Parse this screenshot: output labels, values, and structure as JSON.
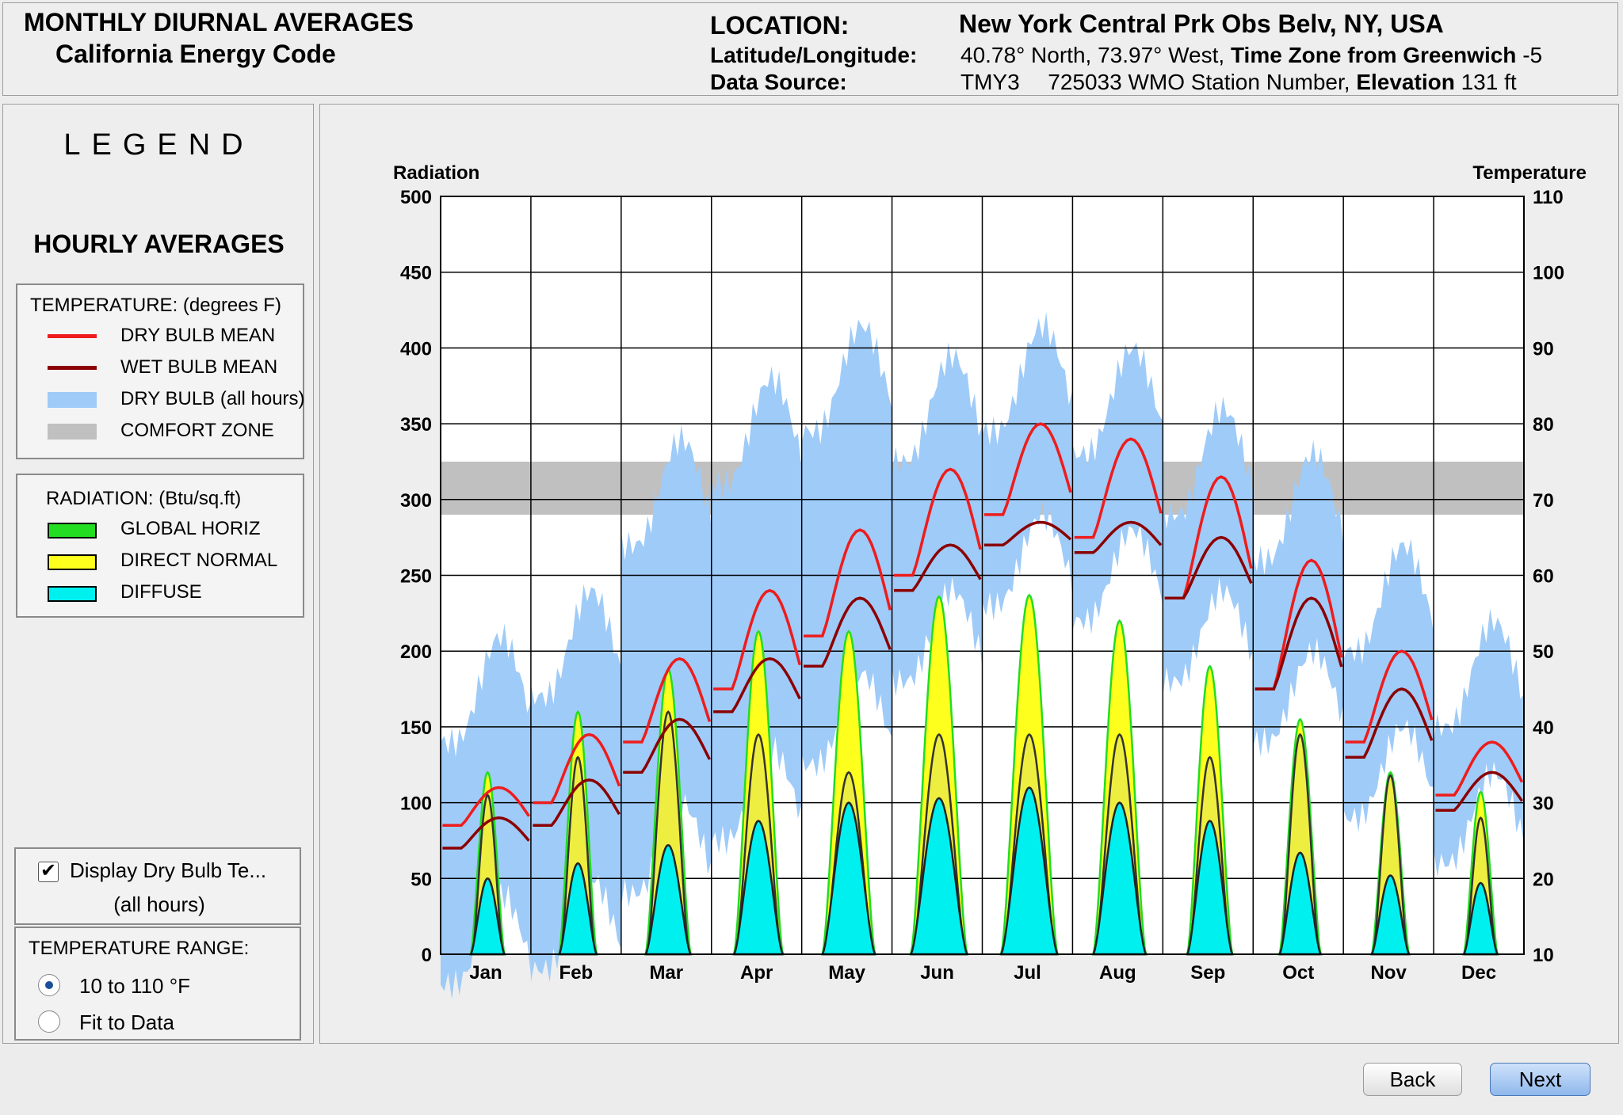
{
  "header": {
    "title_line1": "MONTHLY DIURNAL AVERAGES",
    "title_line2": "California Energy Code",
    "location_label": "LOCATION:",
    "location_value": "New York Central Prk Obs Belv, NY, USA",
    "latlon_label": "Latitude/Longitude:",
    "latlon_value": "40.78° North, 73.97° West,",
    "tz_label": "Time Zone from Greenwich",
    "tz_value": "-5",
    "source_label": "Data Source:",
    "source_value": "TMY3",
    "wmo_value": "725033 WMO Station Number,",
    "elev_label": "Elevation",
    "elev_value": "131 ft"
  },
  "legend": {
    "title": "LEGEND",
    "subtitle": "HOURLY AVERAGES",
    "temp_header": "TEMPERATURE: (degrees F)",
    "temp_items": [
      {
        "label": "DRY BULB MEAN",
        "color": "#ee1c1c"
      },
      {
        "label": "WET BULB MEAN",
        "color": "#8b0000"
      },
      {
        "label": "DRY BULB (all hours)",
        "color": "#9fcbf8"
      },
      {
        "label": "COMFORT ZONE",
        "color": "#c0c0c0"
      }
    ],
    "rad_header": "RADIATION: (Btu/sq.ft)",
    "rad_items": [
      {
        "label": "GLOBAL HORIZ",
        "color": "#22dd22"
      },
      {
        "label": "DIRECT NORMAL",
        "color": "#ffff1e"
      },
      {
        "label": "DIFFUSE",
        "color": "#00f0f0"
      }
    ]
  },
  "controls": {
    "display_checkbox_label": "Display Dry Bulb Te...",
    "display_checkbox_sub": "(all hours)",
    "display_checked": true,
    "range_header": "TEMPERATURE RANGE:",
    "range_options": [
      "10 to 110 °F",
      "Fit to Data"
    ],
    "range_selected": 0
  },
  "buttons": {
    "back": "Back",
    "next": "Next"
  },
  "chart_data": {
    "type": "area",
    "left_axis_label": "Radiation",
    "right_axis_label": "Temperature",
    "radiation_ylim": [
      0,
      500
    ],
    "radiation_ticks": [
      0,
      50,
      100,
      150,
      200,
      250,
      300,
      350,
      400,
      450,
      500
    ],
    "temperature_ylim": [
      10,
      110
    ],
    "temperature_ticks": [
      10,
      20,
      30,
      40,
      50,
      60,
      70,
      80,
      90,
      100,
      110
    ],
    "grid": true,
    "comfort_zone": [
      68,
      75
    ],
    "months": [
      "Jan",
      "Feb",
      "Mar",
      "Apr",
      "May",
      "Jun",
      "Jul",
      "Aug",
      "Sep",
      "Oct",
      "Nov",
      "Dec"
    ],
    "global_horiz_peak": [
      120,
      160,
      188,
      213,
      213,
      236,
      237,
      220,
      190,
      155,
      120,
      107
    ],
    "direct_normal_peak": [
      105,
      130,
      160,
      145,
      120,
      145,
      145,
      145,
      130,
      145,
      118,
      90
    ],
    "diffuse_peak": [
      50,
      60,
      72,
      88,
      100,
      103,
      110,
      100,
      88,
      67,
      52,
      47
    ],
    "dry_bulb_mean_min": [
      27,
      30,
      38,
      45,
      52,
      60,
      68,
      65,
      57,
      45,
      38,
      31
    ],
    "dry_bulb_mean_max": [
      32,
      39,
      49,
      58,
      66,
      74,
      80,
      78,
      73,
      62,
      50,
      38
    ],
    "wet_bulb_mean_min": [
      24,
      27,
      34,
      42,
      48,
      58,
      64,
      63,
      57,
      45,
      36,
      29
    ],
    "wet_bulb_mean_max": [
      28,
      33,
      41,
      49,
      57,
      64,
      67,
      67,
      65,
      57,
      45,
      34
    ],
    "dry_bulb_all_min": [
      6,
      8,
      18,
      25,
      35,
      46,
      56,
      54,
      46,
      38,
      28,
      22
    ],
    "dry_bulb_all_max": [
      52,
      58,
      78,
      86,
      93,
      89,
      93,
      90,
      82,
      76,
      64,
      54
    ]
  }
}
